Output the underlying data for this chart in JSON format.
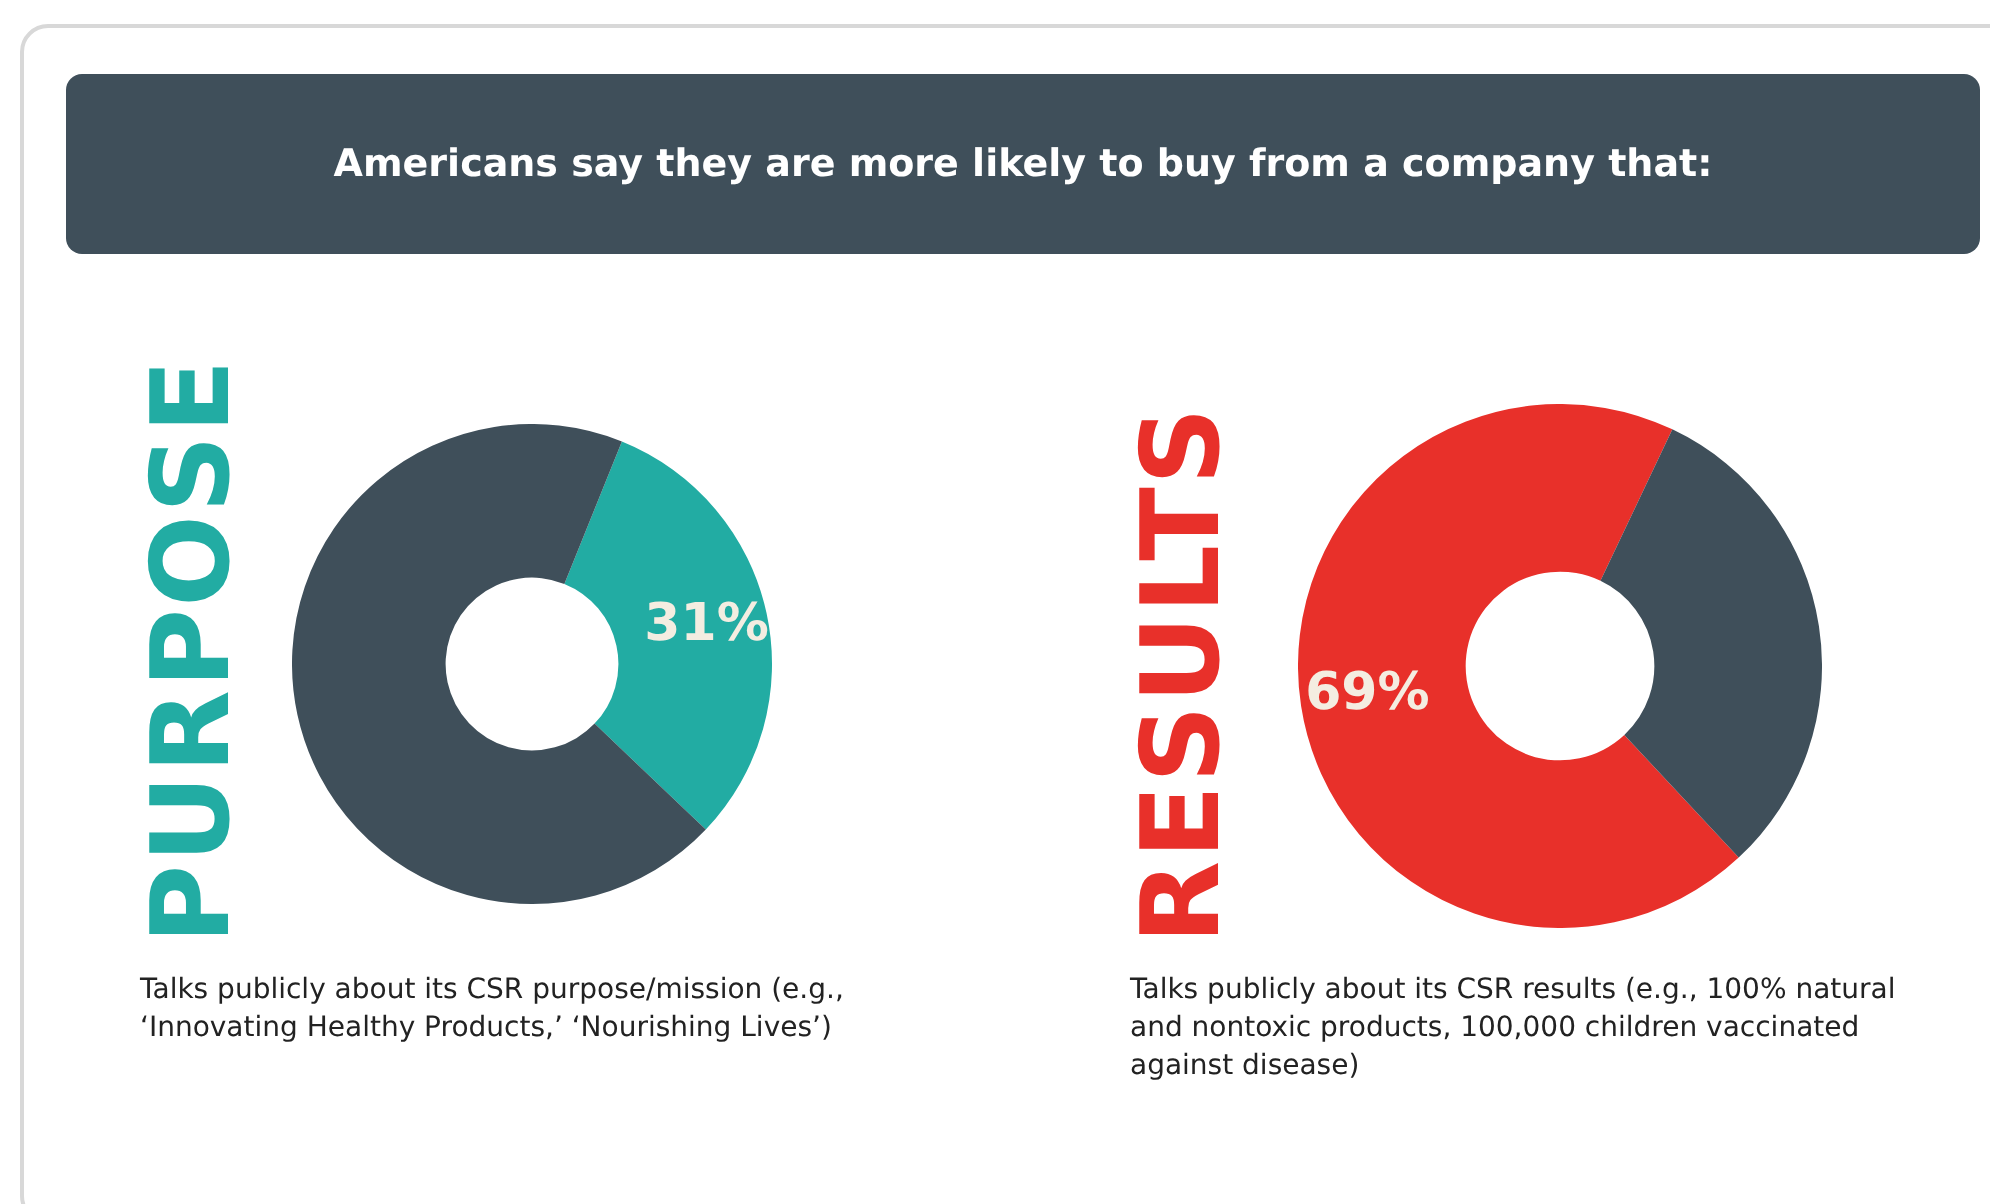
{
  "chart_data": [
    {
      "type": "other",
      "title": "Americans say they are more likely to buy from a company that:"
    },
    {
      "type": "donut",
      "title": "PURPOSE",
      "categories": [
        null,
        null
      ],
      "values": [
        31,
        69
      ],
      "colors": [
        "#22aca3",
        "#3f4f5a"
      ],
      "value_labels": [
        "31%",
        null
      ],
      "legend": false,
      "annotations": [
        "Talks publicly about its CSR purpose/mission (e.g., ‘Innovating Healthy Products,’ ‘Nourishing Lives’)"
      ]
    },
    {
      "type": "donut",
      "title": "RESULTS",
      "categories": [
        null,
        null
      ],
      "values": [
        69,
        31
      ],
      "colors": [
        "#e8302a",
        "#3f4f5a"
      ],
      "value_labels": [
        "69%",
        null
      ],
      "legend": false,
      "annotations": [
        "Talks publicly about its CSR results (e.g., 100% natural and nontoxic products, 100,000 children vaccinated against disease)"
      ]
    }
  ]
}
